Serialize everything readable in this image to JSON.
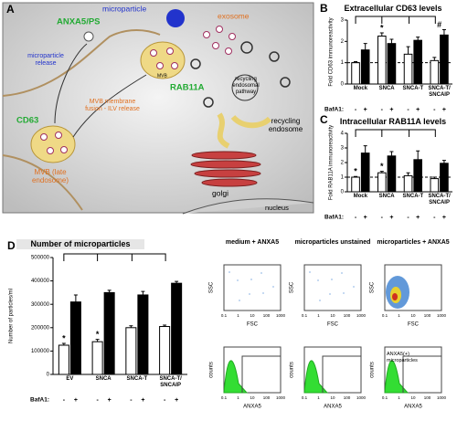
{
  "panel_a": {
    "letter": "A",
    "microparticle": "microparticle",
    "anxa5_ps": "ANXA5/PS",
    "exosome": "exosome",
    "microparticle_release": "microparticle release",
    "mvb_small": "MVB",
    "rab11a": "RAB11A",
    "recycling_pathway": "recycling endosomal pathway",
    "recycling_endosome": "recycling endosome",
    "mvb_fusion": "MVB membrane fusion - ILV release",
    "cd63": "CD63",
    "mvb_late": "MVB (late endosome)",
    "golgi": "golgi",
    "nucleus": "nucleus"
  },
  "chart_data": [
    {
      "type": "bar",
      "panel_label": "B",
      "title": "Extracellular CD63 levels",
      "y_label": "Fold CD63 immunoreactivity",
      "categories": [
        "Mock",
        "SNCA",
        "SNCA-T",
        "SNCA-T/ SNCAIP"
      ],
      "legend_title": "BafA1:",
      "series": [
        {
          "name": "-",
          "color": "#ffffff",
          "values": [
            1.0,
            2.25,
            1.4,
            1.1
          ],
          "errors": [
            0.05,
            0.15,
            0.35,
            0.15
          ]
        },
        {
          "name": "+",
          "color": "#000000",
          "values": [
            1.6,
            1.9,
            2.05,
            2.3
          ],
          "errors": [
            0.3,
            0.2,
            0.15,
            0.25
          ]
        }
      ],
      "ylim": [
        0,
        3
      ],
      "yticks": [
        0,
        1,
        2,
        3
      ],
      "reference_line": 1,
      "annotations": [
        "*",
        "#"
      ]
    },
    {
      "type": "bar",
      "panel_label": "C",
      "title": "Intracellular RAB11A levels",
      "y_label": "Fold RAB11A immunoreactivity",
      "categories": [
        "Mock",
        "SNCA",
        "SNCA-T",
        "SNCA-T/ SNCAIP"
      ],
      "legend_title": "BafA1:",
      "series": [
        {
          "name": "-",
          "color": "#ffffff",
          "values": [
            1.0,
            1.3,
            1.1,
            0.9
          ],
          "errors": [
            0.05,
            0.1,
            0.2,
            0.1
          ]
        },
        {
          "name": "+",
          "color": "#000000",
          "values": [
            2.65,
            2.45,
            2.2,
            1.95
          ],
          "errors": [
            0.5,
            0.3,
            0.6,
            0.2
          ]
        }
      ],
      "ylim": [
        0,
        4
      ],
      "yticks": [
        0,
        1,
        2,
        3,
        4
      ],
      "reference_line": 1,
      "annotations": [
        "*",
        "*"
      ]
    },
    {
      "type": "bar",
      "panel_label": "D",
      "title": "Number of microparticles",
      "y_label": "Number of particles/ml",
      "categories": [
        "EV",
        "SNCA",
        "SNCA-T",
        "SNCA-T/ SNCAIP"
      ],
      "legend_title": "BafA1:",
      "series": [
        {
          "name": "-",
          "color": "#ffffff",
          "values": [
            125000,
            140000,
            200000,
            205000
          ],
          "errors": [
            8000,
            10000,
            8000,
            6000
          ]
        },
        {
          "name": "+",
          "color": "#000000",
          "values": [
            310000,
            350000,
            340000,
            390000
          ],
          "errors": [
            30000,
            10000,
            15000,
            8000
          ]
        }
      ],
      "ylim": [
        0,
        500000
      ],
      "yticks": [
        0,
        100000,
        200000,
        300000,
        400000,
        500000
      ],
      "annotations": [
        "*",
        "*"
      ]
    }
  ],
  "flow": {
    "columns": [
      "medium + ANXA5",
      "microparticles unstained",
      "microparticles + ANXA5"
    ],
    "scatter_x": "FSC",
    "scatter_y": "SSC",
    "hist_x": "ANXA5",
    "hist_y": "counts",
    "ticks": [
      0.1,
      1,
      10,
      100,
      1000
    ],
    "gate_label": "ANXA5(+) microparticles"
  }
}
